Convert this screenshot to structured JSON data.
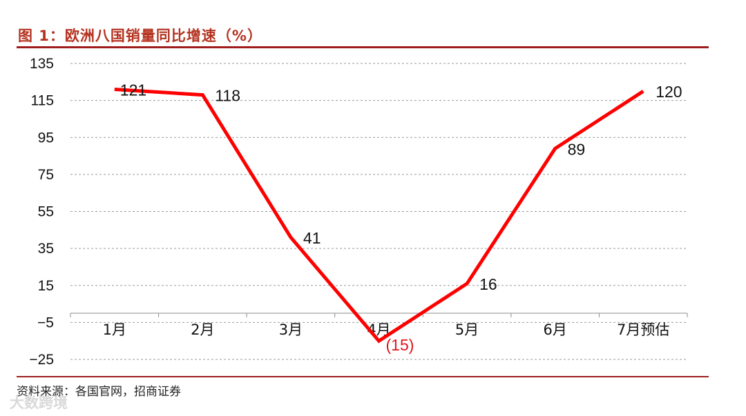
{
  "chart_data": {
    "type": "line",
    "title": "图 1：欧洲八国销量同比增速（%）",
    "categories": [
      "1月",
      "2月",
      "3月",
      "4月",
      "5月",
      "6月",
      "7月预估"
    ],
    "series": [
      {
        "values": [
          121,
          118,
          41,
          -15,
          16,
          89,
          120
        ]
      }
    ],
    "data_labels": [
      "121",
      "118",
      "41",
      "(15)",
      "16",
      "89",
      "120"
    ],
    "y_ticks": [
      "135",
      "115",
      "95",
      "75",
      "55",
      "35",
      "15",
      "−5",
      "−25"
    ],
    "ylim": [
      -25,
      135
    ],
    "y_tick_step": 20,
    "grid": "horizontal dashed",
    "line_color": "#ff0000",
    "negative_label_color": "#e0141c",
    "source": "资料来源：各国官网，招商证券"
  },
  "watermark": "大数跨境"
}
